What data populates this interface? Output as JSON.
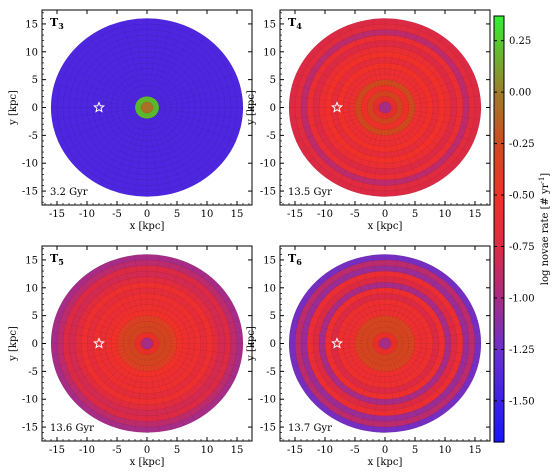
{
  "chart_data": {
    "type": "heatmap",
    "colorbar": {
      "label": "log novae rate [# yr",
      "label_unit_sup": "-1",
      "label_suffix": "]",
      "range": [
        -1.7,
        0.37
      ],
      "ticks": [
        "0.25",
        "0.00",
        "-0.25",
        "-0.50",
        "-0.75",
        "-1.00",
        "-1.25",
        "-1.50"
      ],
      "tick_values": [
        0.25,
        0.0,
        -0.25,
        -0.5,
        -0.75,
        -1.0,
        -1.25,
        -1.5
      ],
      "colors": [
        {
          "v": -1.7,
          "c": "#1515ff"
        },
        {
          "v": -1.25,
          "c": "#6a2fd0"
        },
        {
          "v": -1.0,
          "c": "#a62c86"
        },
        {
          "v": -0.75,
          "c": "#dd2a44"
        },
        {
          "v": -0.5,
          "c": "#f2302a"
        },
        {
          "v": -0.25,
          "c": "#d04a1e"
        },
        {
          "v": 0.0,
          "c": "#a07a28"
        },
        {
          "v": 0.37,
          "c": "#33ee33"
        }
      ]
    },
    "panels": [
      {
        "label_base": "T",
        "label_sub": "3",
        "age": "3.2 Gyr",
        "rings": [
          {
            "r": 2,
            "v": 0.22
          },
          {
            "r": 3,
            "v": -1.4
          },
          {
            "r": 4,
            "v": -1.4
          },
          {
            "r": 5,
            "v": -1.4
          },
          {
            "r": 6,
            "v": -1.4
          },
          {
            "r": 7,
            "v": -1.4
          },
          {
            "r": 8,
            "v": -1.4
          },
          {
            "r": 9,
            "v": -1.4
          },
          {
            "r": 10,
            "v": -1.4
          },
          {
            "r": 11,
            "v": -1.4
          },
          {
            "r": 12,
            "v": -1.4
          },
          {
            "r": 13,
            "v": -1.4
          },
          {
            "r": 14,
            "v": -1.4
          },
          {
            "r": 15,
            "v": -1.4
          },
          {
            "r": 16,
            "v": -1.4
          }
        ],
        "center": -0.05
      },
      {
        "label_base": "T",
        "label_sub": "4",
        "age": "13.5 Gyr",
        "rings": [
          {
            "r": 2,
            "v": -0.55
          },
          {
            "r": 3,
            "v": -0.3
          },
          {
            "r": 4,
            "v": -0.5
          },
          {
            "r": 5,
            "v": -0.25
          },
          {
            "r": 6,
            "v": -0.55
          },
          {
            "r": 7,
            "v": -0.6
          },
          {
            "r": 8,
            "v": -0.5
          },
          {
            "r": 9,
            "v": -0.65
          },
          {
            "r": 10,
            "v": -0.5
          },
          {
            "r": 11,
            "v": -0.6
          },
          {
            "r": 12,
            "v": -0.75
          },
          {
            "r": 13,
            "v": -0.6
          },
          {
            "r": 14,
            "v": -0.9
          },
          {
            "r": 15,
            "v": -0.7
          },
          {
            "r": 16,
            "v": -0.75
          }
        ],
        "center": -1.0
      },
      {
        "label_base": "T",
        "label_sub": "5",
        "age": "13.6 Gyr",
        "rings": [
          {
            "r": 2,
            "v": -0.5
          },
          {
            "r": 3,
            "v": -0.3
          },
          {
            "r": 4,
            "v": -0.3
          },
          {
            "r": 5,
            "v": -0.35
          },
          {
            "r": 6,
            "v": -0.5
          },
          {
            "r": 7,
            "v": -0.55
          },
          {
            "r": 8,
            "v": -0.6
          },
          {
            "r": 9,
            "v": -0.55
          },
          {
            "r": 10,
            "v": -0.65
          },
          {
            "r": 11,
            "v": -0.55
          },
          {
            "r": 12,
            "v": -0.7
          },
          {
            "r": 13,
            "v": -0.8
          },
          {
            "r": 14,
            "v": -0.75
          },
          {
            "r": 15,
            "v": -0.9
          },
          {
            "r": 16,
            "v": -1.0
          }
        ],
        "center": -1.0
      },
      {
        "label_base": "T",
        "label_sub": "6",
        "age": "13.7 Gyr",
        "rings": [
          {
            "r": 2,
            "v": -0.5
          },
          {
            "r": 3,
            "v": -0.3
          },
          {
            "r": 4,
            "v": -0.3
          },
          {
            "r": 5,
            "v": -0.3
          },
          {
            "r": 6,
            "v": -0.55
          },
          {
            "r": 7,
            "v": -0.6
          },
          {
            "r": 8,
            "v": -0.55
          },
          {
            "r": 9,
            "v": -0.75
          },
          {
            "r": 10,
            "v": -0.55
          },
          {
            "r": 11,
            "v": -1.0
          },
          {
            "r": 12,
            "v": -0.75
          },
          {
            "r": 13,
            "v": -0.6
          },
          {
            "r": 14,
            "v": -1.05
          },
          {
            "r": 15,
            "v": -0.9
          },
          {
            "r": 16,
            "v": -1.2
          }
        ],
        "center": -1.0
      }
    ],
    "axes": {
      "xlabel": "x [kpc]",
      "ylabel": "y [kpc]",
      "xlim": [
        -17.5,
        17.5
      ],
      "ylim": [
        -17.5,
        17.5
      ],
      "ticks": [
        -15,
        -10,
        -5,
        0,
        5,
        10,
        15
      ],
      "tick_labels": [
        "-15",
        "-10",
        "-5",
        "0",
        "5",
        "10",
        "15"
      ]
    },
    "sun_marker": {
      "x": -8,
      "y": 0
    },
    "disk_radius": 16
  }
}
